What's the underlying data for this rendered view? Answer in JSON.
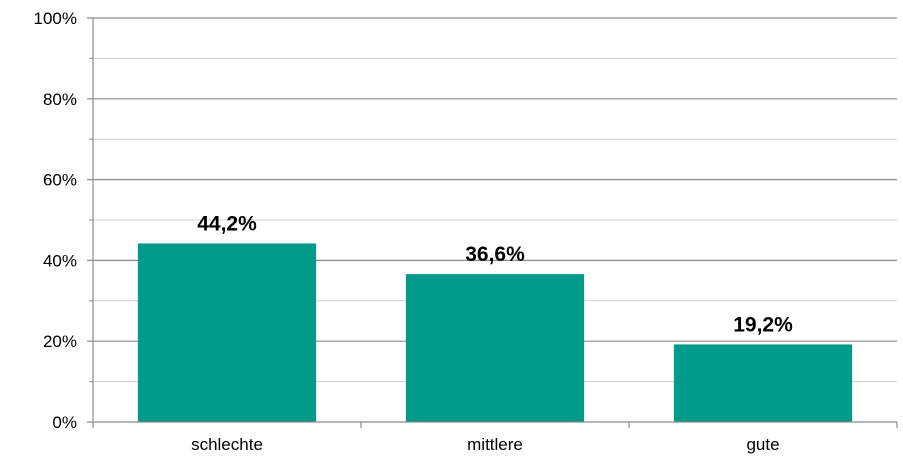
{
  "chart_data": {
    "type": "bar",
    "categories": [
      "schlechte",
      "mittlere",
      "gute"
    ],
    "values": [
      44.2,
      36.6,
      19.2
    ],
    "value_labels": [
      "44,2%",
      "36,6%",
      "19,2%"
    ],
    "title": "",
    "xlabel": "",
    "ylabel": "",
    "ylim": [
      0,
      100
    ],
    "y_ticks": [
      0,
      20,
      40,
      60,
      80,
      100
    ],
    "y_tick_labels": [
      "0%",
      "20%",
      "40%",
      "60%",
      "80%",
      "100%"
    ],
    "grid": true,
    "legend": "none",
    "bar_color": "#009A8A"
  }
}
